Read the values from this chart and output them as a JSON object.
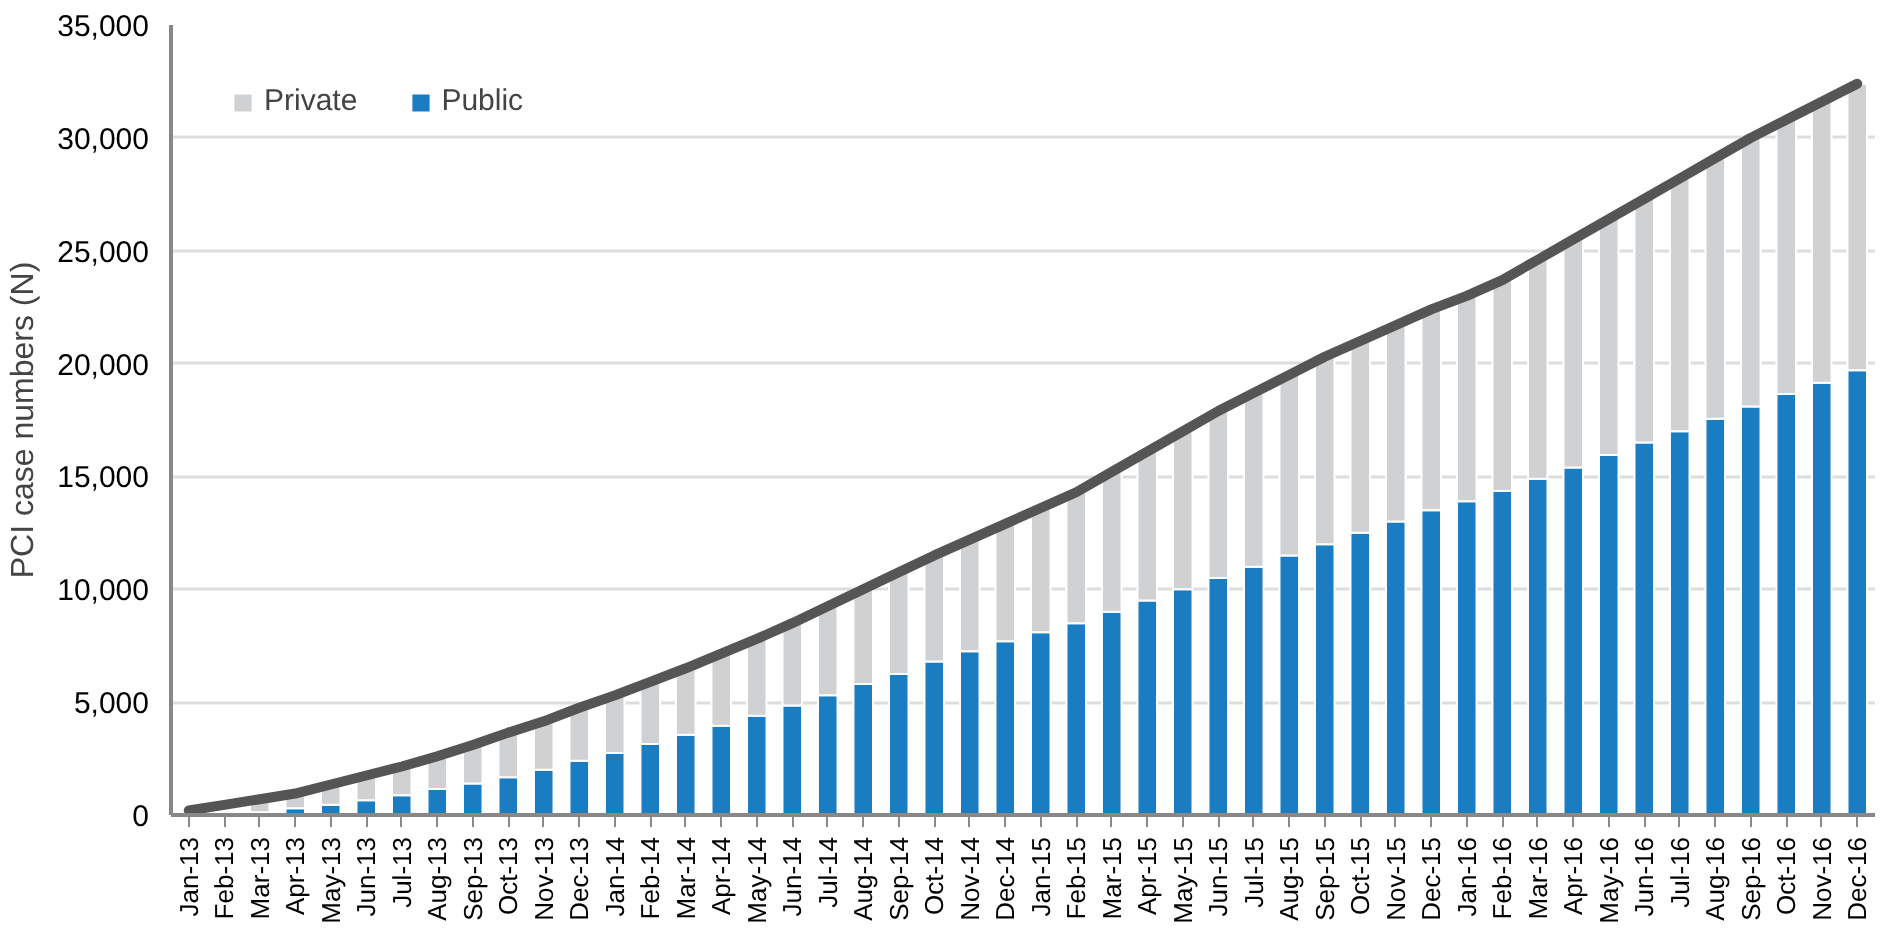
{
  "chart_data": {
    "type": "bar",
    "stacked": true,
    "ylabel": "PCI case numbers (N)",
    "categories": [
      "Jan-13",
      "Feb-13",
      "Mar-13",
      "Apr-13",
      "May-13",
      "Jun-13",
      "Jul-13",
      "Aug-13",
      "Sep-13",
      "Oct-13",
      "Nov-13",
      "Dec-13",
      "Jan-14",
      "Feb-14",
      "Mar-14",
      "Apr-14",
      "May-14",
      "Jun-14",
      "Jul-14",
      "Aug-14",
      "Sep-14",
      "Oct-14",
      "Nov-14",
      "Dec-14",
      "Jan-15",
      "Feb-15",
      "Mar-15",
      "Apr-15",
      "May-15",
      "Jun-15",
      "Jul-15",
      "Aug-15",
      "Sep-15",
      "Oct-15",
      "Nov-15",
      "Dec-15",
      "Jan-16",
      "Feb-16",
      "Mar-16",
      "Apr-16",
      "May-16",
      "Jun-16",
      "Jul-16",
      "Aug-16",
      "Sep-16",
      "Oct-16",
      "Nov-16",
      "Dec-16"
    ],
    "series": [
      {
        "name": "Public",
        "color": "#1a7cc1",
        "values": [
          null,
          50,
          120,
          300,
          450,
          650,
          880,
          1150,
          1400,
          1670,
          2000,
          2400,
          2750,
          3150,
          3550,
          3950,
          4400,
          4850,
          5300,
          5800,
          6250,
          6800,
          7250,
          7700,
          8100,
          8500,
          9000,
          9500,
          10000,
          10500,
          11000,
          11500,
          12000,
          12500,
          13000,
          13500,
          13900,
          14350,
          14900,
          15400,
          15950,
          16500,
          17000,
          17550,
          18100,
          18650,
          19150,
          19700
        ]
      },
      {
        "name": "Private",
        "color": "#d0d1d3",
        "values": [
          null,
          null,
          600,
          650,
          900,
          1100,
          1270,
          1450,
          1700,
          1980,
          2150,
          2350,
          2550,
          2750,
          2950,
          3200,
          3400,
          3650,
          3950,
          4200,
          4500,
          4700,
          4950,
          5200,
          5500,
          5800,
          6200,
          6600,
          7000,
          7400,
          7700,
          8000,
          8300,
          8500,
          8700,
          8900,
          9100,
          9350,
          9700,
          10100,
          10450,
          10800,
          11200,
          11550,
          11900,
          12150,
          12450,
          12700
        ]
      },
      {
        "type": "line",
        "color": "#555555",
        "values": [
          200,
          450,
          700,
          950,
          1350,
          1750,
          2150,
          2600,
          3100,
          3650,
          4150,
          4750,
          5300,
          5900,
          6500,
          7150,
          7800,
          8500,
          9250,
          10000,
          10750,
          11500,
          12200,
          12900,
          13600,
          14300,
          15200,
          16100,
          17000,
          17900,
          18700,
          19500,
          20300,
          21000,
          21700,
          22400,
          23000,
          23700,
          24600,
          25500,
          26400,
          27300,
          28200,
          29100,
          30000,
          30800,
          31600,
          32400
        ]
      }
    ],
    "ylim": [
      0,
      35000
    ],
    "yticks": [
      0,
      {
        "value": 5000,
        "label": "5,000"
      },
      {
        "value": 10000,
        "label": "10,000"
      },
      {
        "value": 15000,
        "label": "15,000"
      },
      {
        "value": 20000,
        "label": "20,000"
      },
      {
        "value": 25000,
        "label": "25,000"
      },
      {
        "value": 30000,
        "label": "30,000"
      },
      {
        "value": 35000,
        "label": "35,000"
      }
    ],
    "grid": "y",
    "legend": "top left"
  }
}
